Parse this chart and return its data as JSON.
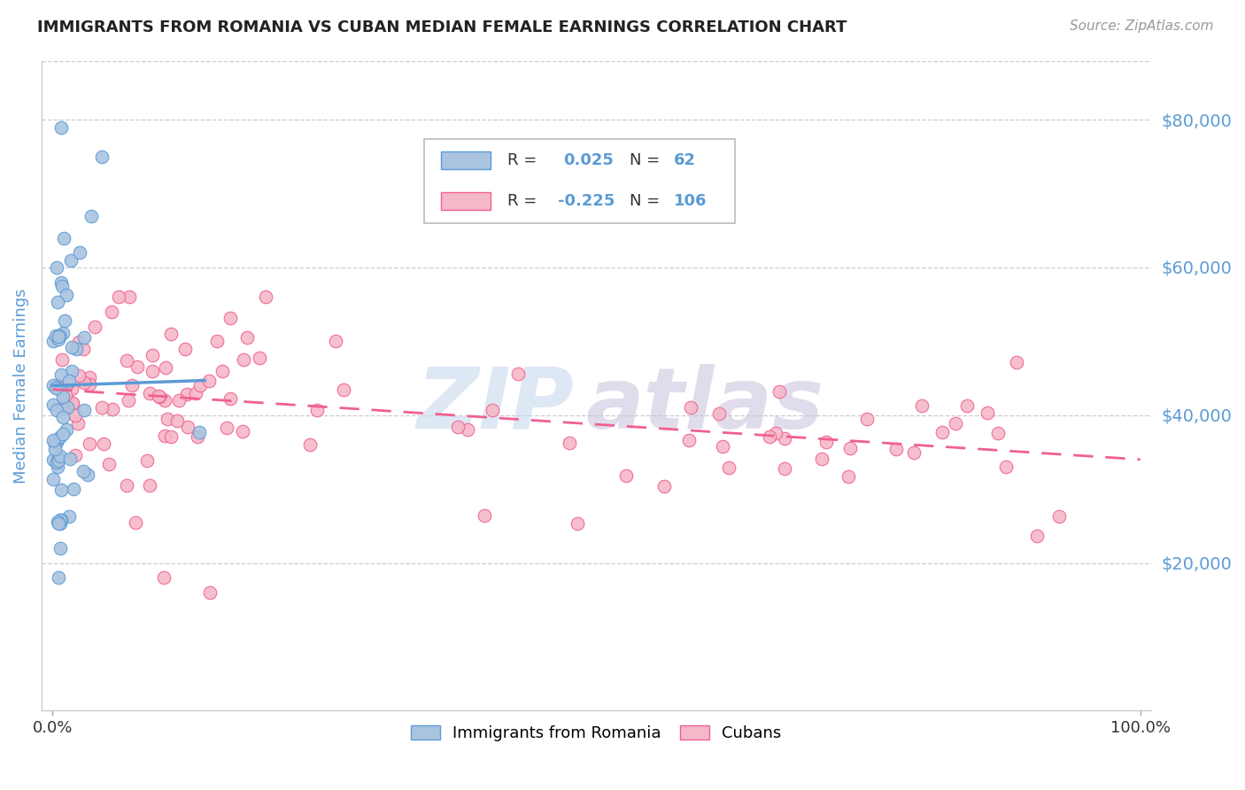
{
  "title": "IMMIGRANTS FROM ROMANIA VS CUBAN MEDIAN FEMALE EARNINGS CORRELATION CHART",
  "source": "Source: ZipAtlas.com",
  "ylabel": "Median Female Earnings",
  "yticks": [
    20000,
    40000,
    60000,
    80000
  ],
  "ytick_labels": [
    "$20,000",
    "$40,000",
    "$60,000",
    "$80,000"
  ],
  "ylim": [
    0,
    88000
  ],
  "xlim": [
    -0.01,
    1.01
  ],
  "color_romania": "#aac4e0",
  "color_cuba": "#f5b8c8",
  "color_trendline_romania": "#5b9bd5",
  "color_trendline_cuba": "#f06090",
  "color_axis_label": "#5b9bd5",
  "color_ytick_label": "#5b9bd5",
  "legend_label_romania": "Immigrants from Romania",
  "legend_label_cuba": "Cubans",
  "romania_trend_x": [
    0.0,
    0.14
  ],
  "romania_trend_y": [
    44000,
    44700
  ],
  "cuba_trend_x": [
    0.0,
    1.0
  ],
  "cuba_trend_y": [
    43500,
    34000
  ]
}
